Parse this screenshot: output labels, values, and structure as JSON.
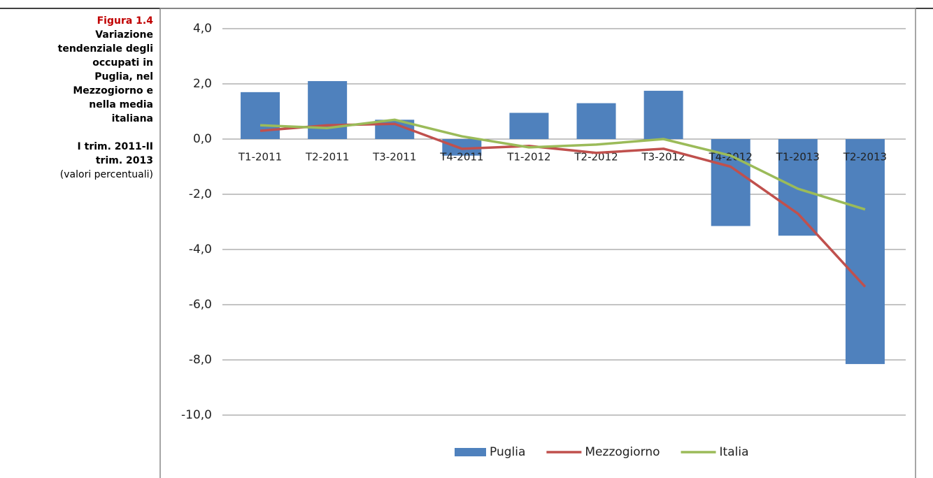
{
  "chart_data": {
    "type": "bar-line",
    "title": "Figura 1.4",
    "subtitle": "Variazione tendenziale degli occupati in Puglia, nel Mezzogiorno e nella media italiana",
    "period": "I trim. 2011-II trim. 2013",
    "note": "(valori percentuali)",
    "categories": [
      "T1-2011",
      "T2-2011",
      "T3-2011",
      "T4-2011",
      "T1-2012",
      "T2-2012",
      "T3-2012",
      "T4-2012",
      "T1-2013",
      "T2-2013"
    ],
    "series": [
      {
        "name": "Puglia",
        "kind": "bar",
        "color": "#4f81bd",
        "values": [
          1.7,
          2.1,
          0.7,
          -0.6,
          0.95,
          1.3,
          1.75,
          -3.15,
          -3.5,
          -8.15
        ]
      },
      {
        "name": "Mezzogiorno",
        "kind": "line",
        "color": "#c0504d",
        "values": [
          0.3,
          0.5,
          0.55,
          -0.35,
          -0.25,
          -0.5,
          -0.35,
          -1.0,
          -2.7,
          -5.35
        ]
      },
      {
        "name": "Italia",
        "kind": "line",
        "color": "#9bbb59",
        "values": [
          0.5,
          0.4,
          0.7,
          0.1,
          -0.3,
          -0.2,
          0.0,
          -0.6,
          -1.8,
          -2.55
        ]
      }
    ],
    "ylim": [
      -10,
      4
    ],
    "yticks": [
      {
        "value": -10,
        "label": "-10,0"
      },
      {
        "value": -8,
        "label": "-8,0"
      },
      {
        "value": -6,
        "label": "-6,0"
      },
      {
        "value": -4,
        "label": "-4,0"
      },
      {
        "value": -2,
        "label": "-2,0"
      },
      {
        "value": 0,
        "label": "0,0"
      },
      {
        "value": 2,
        "label": "2,0"
      },
      {
        "value": 4,
        "label": "4,0"
      }
    ],
    "grid": true,
    "legend": "bottom"
  }
}
